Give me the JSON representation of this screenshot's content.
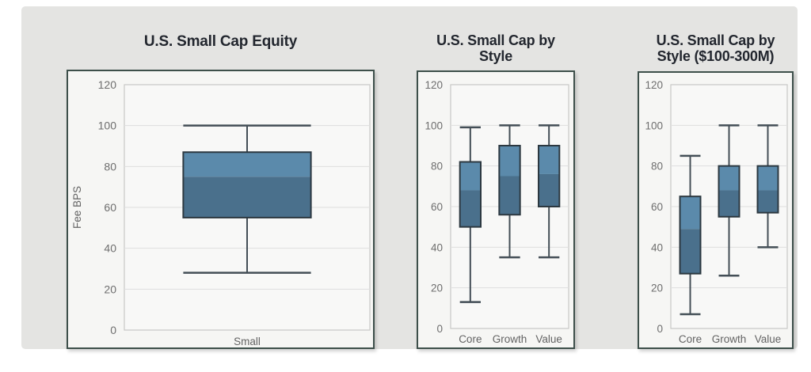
{
  "page": {
    "background": "#ffffff",
    "canvas_background": "#e4e4e2"
  },
  "colors": {
    "panel_bg": "#f6f6f4",
    "panel_border": "#3d4f4a",
    "plot_bg": "#f8f8f7",
    "plot_border": "#c8c8c6",
    "gridline": "#dedede",
    "box_upper_fill": "#5b8aab",
    "box_lower_fill": "#4a708c",
    "box_stroke": "#2c3840",
    "whisker_stroke": "#434e56",
    "tick_label": "#6e6e6e",
    "category_label": "#636363",
    "title_text": "#22262e"
  },
  "chart_data": [
    {
      "type": "boxplot",
      "title": "U.S. Small Cap Equity",
      "title_lines": [
        "U.S. Small Cap Equity"
      ],
      "ylabel": "Fee BPS",
      "xlabel": "",
      "ylim": [
        0,
        120
      ],
      "yticks": [
        0,
        20,
        40,
        60,
        80,
        100,
        120
      ],
      "grid": true,
      "legend": "none",
      "categories": [
        "Small"
      ],
      "series": [
        {
          "category": "Small",
          "min": 28,
          "q1": 55,
          "median": 75,
          "q3": 87,
          "max": 100
        }
      ]
    },
    {
      "type": "boxplot",
      "title": "U.S. Small Cap by Style",
      "title_lines": [
        "U.S. Small Cap by",
        "Style"
      ],
      "ylabel": "",
      "xlabel": "",
      "ylim": [
        0,
        120
      ],
      "yticks": [
        0,
        20,
        40,
        60,
        80,
        100,
        120
      ],
      "grid": true,
      "legend": "none",
      "categories": [
        "Core",
        "Growth",
        "Value"
      ],
      "series": [
        {
          "category": "Core",
          "min": 13,
          "q1": 50,
          "median": 68,
          "q3": 82,
          "max": 99
        },
        {
          "category": "Growth",
          "min": 35,
          "q1": 56,
          "median": 75,
          "q3": 90,
          "max": 100
        },
        {
          "category": "Value",
          "min": 35,
          "q1": 60,
          "median": 76,
          "q3": 90,
          "max": 100
        }
      ]
    },
    {
      "type": "boxplot",
      "title": "U.S. Small Cap by Style ($100-300M)",
      "title_lines": [
        "U.S. Small Cap by",
        "Style ($100-300M)"
      ],
      "ylabel": "",
      "xlabel": "",
      "ylim": [
        0,
        120
      ],
      "yticks": [
        0,
        20,
        40,
        60,
        80,
        100,
        120
      ],
      "grid": true,
      "legend": "none",
      "categories": [
        "Core",
        "Growth",
        "Value"
      ],
      "series": [
        {
          "category": "Core",
          "min": 7,
          "q1": 27,
          "median": 49,
          "q3": 65,
          "max": 85
        },
        {
          "category": "Growth",
          "min": 26,
          "q1": 55,
          "median": 68,
          "q3": 80,
          "max": 100
        },
        {
          "category": "Value",
          "min": 40,
          "q1": 57,
          "median": 68,
          "q3": 80,
          "max": 100
        }
      ]
    }
  ]
}
